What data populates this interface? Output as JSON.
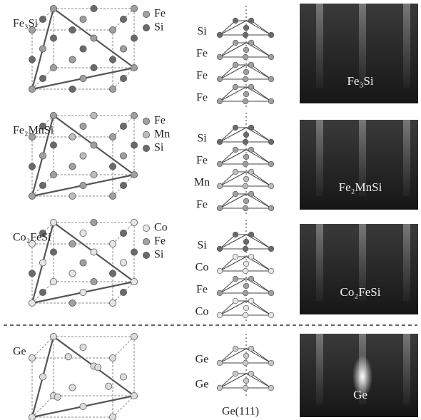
{
  "panels": [
    {
      "name": "Fe₃Si",
      "legend": [
        {
          "label": "Fe",
          "color": "#a0a0a0"
        },
        {
          "label": "Si",
          "color": "#6a6a6a"
        }
      ],
      "layers": [
        "Si",
        "Fe",
        "Fe",
        "Fe"
      ],
      "image_label": "Fe₃Si"
    },
    {
      "name": "Fe₂MnSi",
      "legend": [
        {
          "label": "Fe",
          "color": "#a0a0a0"
        },
        {
          "label": "Mn",
          "color": "#bdbdbd"
        },
        {
          "label": "Si",
          "color": "#6a6a6a"
        }
      ],
      "layers": [
        "Si",
        "Fe",
        "Mn",
        "Fe"
      ],
      "image_label": "Fe₂MnSi"
    },
    {
      "name": "Co₂FeSi",
      "legend": [
        {
          "label": "Co",
          "color": "#e6e6e6"
        },
        {
          "label": "Fe",
          "color": "#a0a0a0"
        },
        {
          "label": "Si",
          "color": "#6a6a6a"
        }
      ],
      "layers": [
        "Si",
        "Co",
        "Fe",
        "Co"
      ],
      "image_label": "Co₂FeSi"
    },
    {
      "name": "Ge",
      "layers": [
        "Ge",
        "Ge"
      ],
      "image_label": "Ge"
    }
  ],
  "substrate": "Ge(111)"
}
